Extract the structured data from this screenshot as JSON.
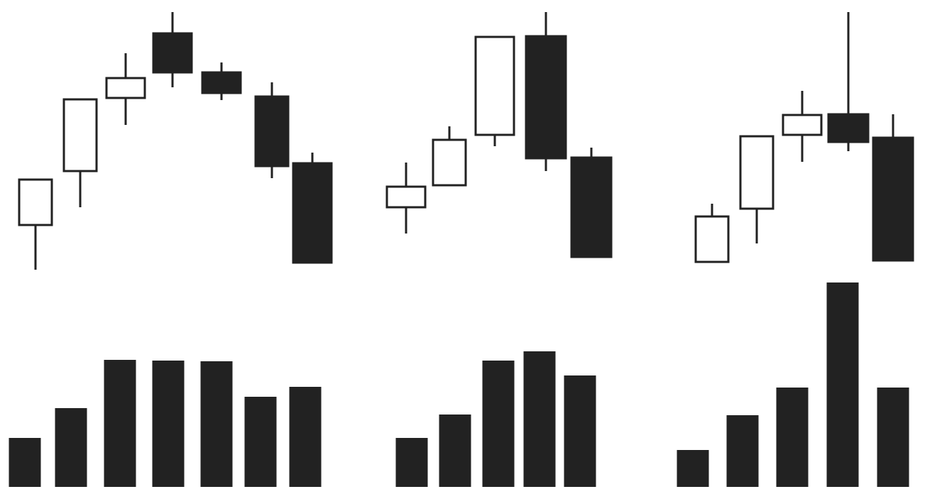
{
  "chart_data": [
    {
      "type": "candlestick",
      "open": [
        83,
        159,
        262,
        353,
        298,
        264,
        170
      ],
      "high": [
        147,
        260,
        325,
        383,
        312,
        284,
        185
      ],
      "low": [
        20,
        108,
        224,
        277,
        259,
        149,
        30
      ],
      "close": [
        147,
        260,
        290,
        298,
        269,
        166,
        30
      ],
      "volume": [
        69,
        111,
        179,
        178,
        177,
        127,
        141
      ],
      "ylim": [
        0,
        400
      ],
      "volume_ylim": [
        0,
        300
      ],
      "up_color": "#ffffff",
      "down_color": "#222222",
      "edge_color": "#222222"
    },
    {
      "type": "candlestick",
      "open": [
        108,
        139,
        210,
        349,
        178
      ],
      "high": [
        171,
        222,
        348,
        383,
        192
      ],
      "low": [
        71,
        139,
        194,
        159,
        38
      ],
      "close": [
        137,
        203,
        348,
        177,
        38
      ],
      "volume": [
        69,
        102,
        178,
        191,
        157
      ],
      "ylim": [
        0,
        400
      ],
      "volume_ylim": [
        0,
        300
      ],
      "up_color": "#ffffff",
      "down_color": "#222222",
      "edge_color": "#222222"
    },
    {
      "type": "candlestick",
      "open": [
        31,
        106,
        210,
        239,
        206
      ],
      "high": [
        113,
        208,
        272,
        383,
        239
      ],
      "low": [
        31,
        57,
        172,
        187,
        33
      ],
      "close": [
        95,
        208,
        238,
        200,
        33
      ],
      "volume": [
        52,
        101,
        140,
        288,
        140
      ],
      "ylim": [
        0,
        400
      ],
      "volume_ylim": [
        0,
        300
      ],
      "up_color": "#ffffff",
      "down_color": "#222222",
      "edge_color": "#222222"
    }
  ]
}
